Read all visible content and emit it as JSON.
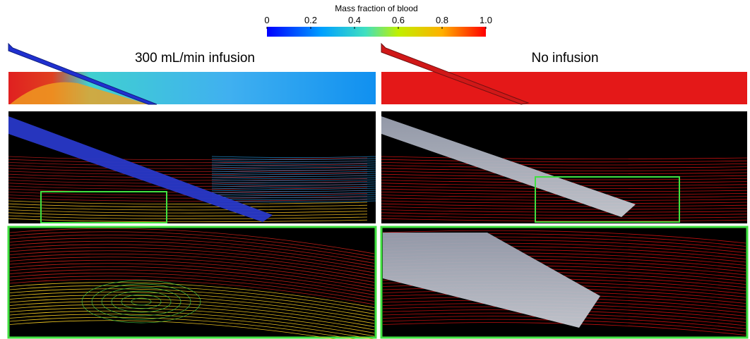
{
  "colorbar": {
    "title": "Mass fraction of blood",
    "lim": [
      0,
      1
    ],
    "ticks": [
      0,
      0.2,
      0.4,
      0.6,
      0.8,
      {
        "value": 1,
        "label": "1.0"
      }
    ]
  },
  "panels": [
    {
      "title": "300 mL/min infusion"
    },
    {
      "title": "No infusion"
    }
  ]
}
